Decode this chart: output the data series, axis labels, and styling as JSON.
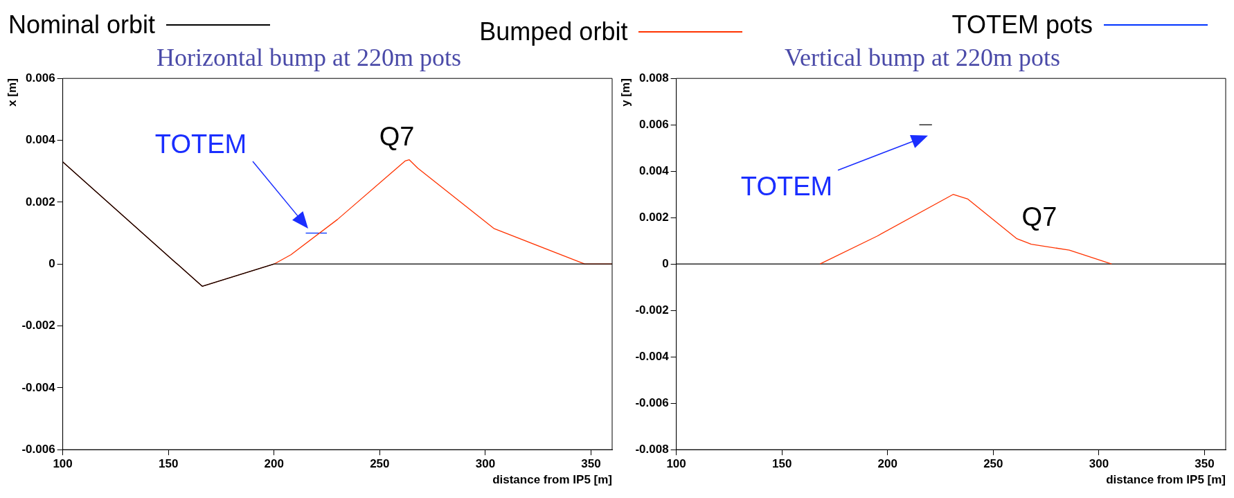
{
  "chart_data": [
    {
      "type": "line",
      "title": "Horizontal bump at 220m pots",
      "xlabel": "distance from IP5 [m]",
      "ylabel": "x [m]",
      "legend": "top",
      "xlim": [
        100,
        360
      ],
      "xticks": [
        100,
        150,
        200,
        250,
        300,
        350
      ],
      "ylim": [
        -0.006,
        0.006
      ],
      "yticks": [
        -0.006,
        -0.004,
        -0.002,
        0,
        0.002,
        0.004,
        0.006
      ],
      "grid": false,
      "series": [
        {
          "name": "Nominal orbit",
          "color": "#000000",
          "x": [
            100,
            166,
            200,
            360
          ],
          "values": [
            0.0033,
            -0.00072,
            0,
            0
          ]
        },
        {
          "name": "Bumped orbit",
          "color": "#ff3300",
          "x": [
            100,
            166,
            200,
            208,
            230,
            262,
            264,
            268,
            304,
            347,
            360
          ],
          "values": [
            0.0033,
            -0.00072,
            0,
            0.0003,
            0.00144,
            0.00333,
            0.00337,
            0.0031,
            0.00115,
            0,
            0
          ]
        },
        {
          "name": "TOTEM pots",
          "color": "#0033ff",
          "x": [
            215,
            225
          ],
          "values": [
            0.001,
            0.001
          ]
        }
      ],
      "annotations": [
        "TOTEM",
        {
          "text": "Q7",
          "x": 263,
          "y": 0.0034
        }
      ]
    },
    {
      "type": "line",
      "title": "Vertical bump at 220m pots",
      "xlabel": "distance from IP5 [m]",
      "ylabel": "y [m]",
      "legend": false,
      "xlim": [
        100,
        360
      ],
      "xticks": [
        100,
        150,
        200,
        250,
        300,
        350
      ],
      "ylim": [
        -0.008,
        0.008
      ],
      "yticks": [
        -0.008,
        -0.006,
        -0.004,
        -0.002,
        0,
        0.002,
        0.004,
        0.006,
        0.008
      ],
      "grid": false,
      "series": [
        {
          "color": "#ff3300",
          "x": [
            168,
            195,
            231,
            238,
            261,
            268,
            286,
            306
          ],
          "values": [
            0,
            0.0012,
            0.003,
            0.0028,
            0.0011,
            0.00085,
            0.0006,
            0
          ]
        },
        {
          "color": "#000000",
          "x": [
            100,
            360
          ],
          "values": [
            0,
            0
          ]
        },
        {
          "color": "#000000",
          "x": [
            215,
            221
          ],
          "values": [
            0.006,
            0.006
          ]
        }
      ],
      "annotations": [
        "TOTEM",
        {
          "text": "Q7",
          "x": 262,
          "y": 0.001
        }
      ]
    }
  ]
}
